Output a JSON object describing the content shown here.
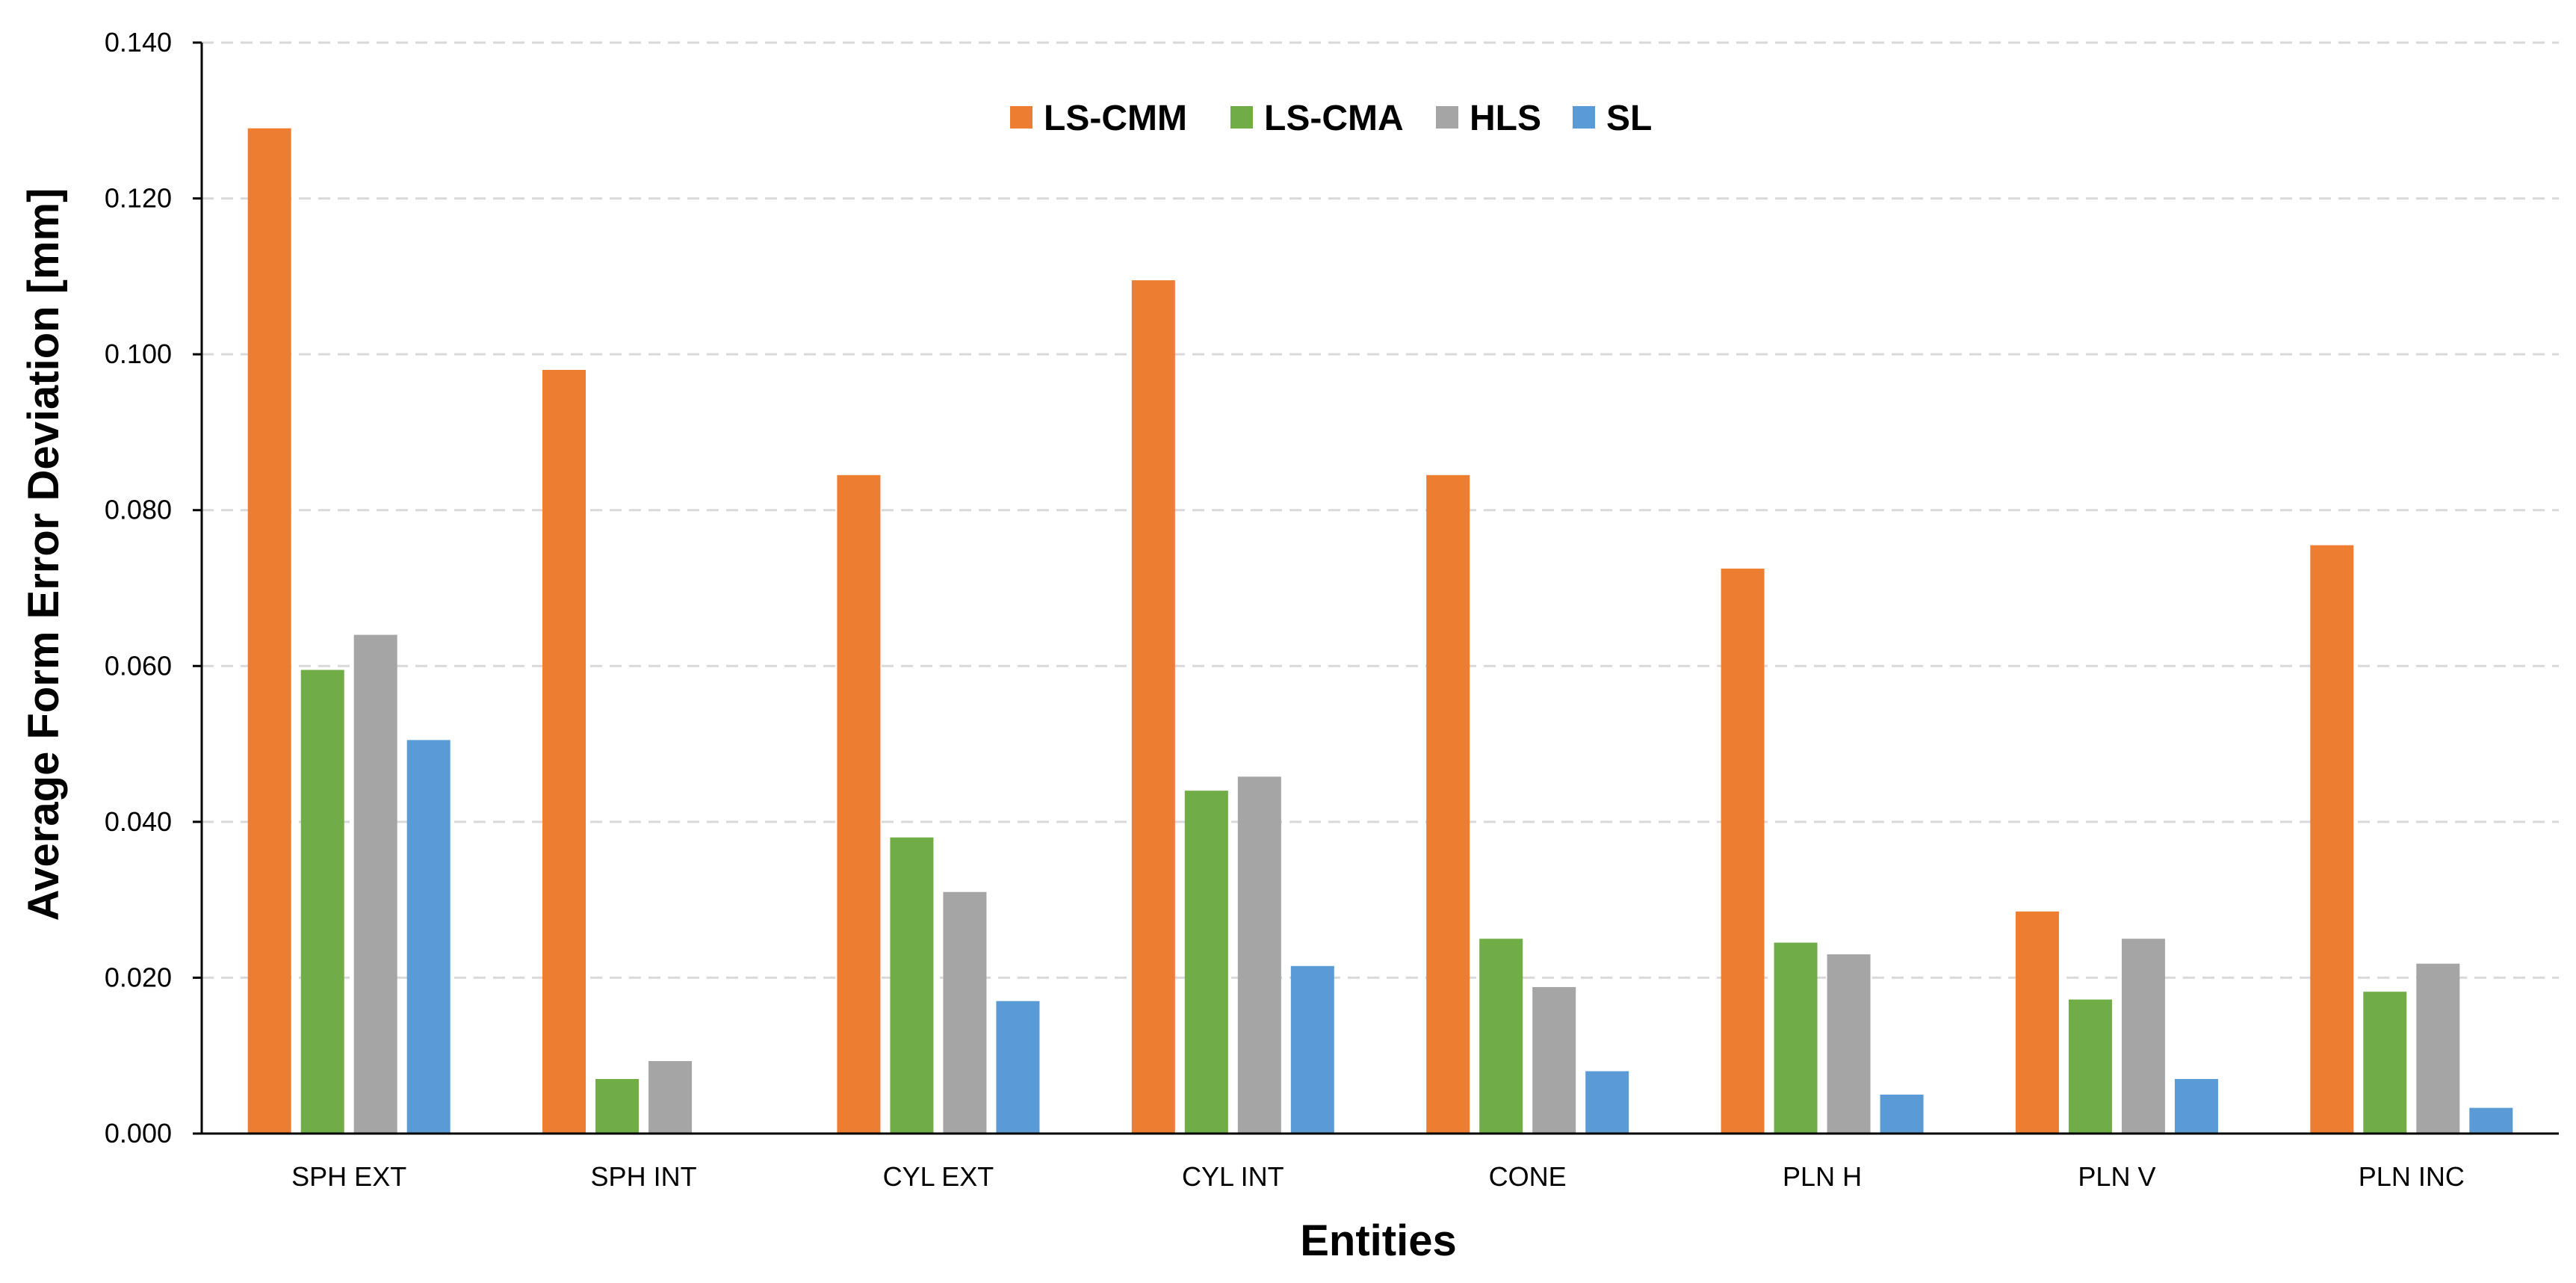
{
  "chart_data": {
    "type": "bar",
    "title": "",
    "xlabel": "Entities",
    "ylabel": "Average Form Error Deviation [mm]",
    "ylim": [
      0,
      0.14
    ],
    "yticks": [
      "0.000",
      "0.020",
      "0.040",
      "0.060",
      "0.080",
      "0.100",
      "0.120",
      "0.140"
    ],
    "ytick_values": [
      0,
      0.02,
      0.04,
      0.06,
      0.08,
      0.1,
      0.12,
      0.14
    ],
    "grid": true,
    "legend_position": "top-center",
    "categories": [
      "SPH EXT",
      "SPH INT",
      "CYL EXT",
      "CYL INT",
      "CONE",
      "PLN H",
      "PLN V",
      "PLN INC"
    ],
    "series": [
      {
        "name": "LS-CMM",
        "color": "#ED7D31",
        "values": [
          0.129,
          0.098,
          0.0845,
          0.1095,
          0.0845,
          0.0725,
          0.0285,
          0.0755
        ]
      },
      {
        "name": "LS-CMA",
        "color": "#70AD47",
        "values": [
          0.0595,
          0.007,
          0.038,
          0.044,
          0.025,
          0.0245,
          0.0172,
          0.0182
        ]
      },
      {
        "name": "HLS",
        "color": "#A5A5A5",
        "values": [
          0.064,
          0.0093,
          0.031,
          0.0458,
          0.0188,
          0.023,
          0.025,
          0.0218
        ]
      },
      {
        "name": "SL",
        "color": "#5B9BD5",
        "values": [
          0.0505,
          0,
          0.017,
          0.0215,
          0.008,
          0.005,
          0.007,
          0.0033
        ]
      }
    ]
  }
}
